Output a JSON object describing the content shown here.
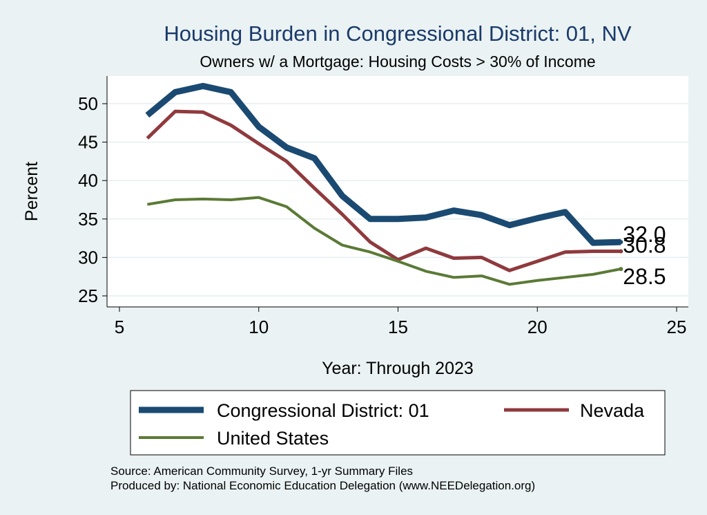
{
  "chart_data": {
    "type": "line",
    "title": "Housing Burden in Congressional District:  01, NV",
    "subtitle": "Owners w/ a Mortgage: Housing Costs > 30% of Income",
    "xlabel": "Year: Through 2023",
    "ylabel": "Percent",
    "xlim": [
      5,
      25
    ],
    "ylim": [
      24,
      54
    ],
    "xticks": [
      5,
      10,
      15,
      20,
      25
    ],
    "yticks": [
      25,
      30,
      35,
      40,
      45,
      50
    ],
    "grid": true,
    "legend_position": "bottom",
    "x": [
      6,
      7,
      8,
      9,
      10,
      11,
      12,
      13,
      14,
      15,
      16,
      17,
      18,
      19,
      20,
      21,
      22,
      23
    ],
    "series": [
      {
        "name": "Congressional District:  01",
        "color": "#1a4a72",
        "values": [
          48.5,
          51.5,
          52.3,
          51.5,
          47.0,
          44.3,
          42.9,
          38.0,
          35.0,
          35.0,
          35.2,
          36.1,
          35.5,
          34.2,
          35.1,
          35.9,
          31.9,
          32.0
        ],
        "end_label": "32.0"
      },
      {
        "name": "Nevada",
        "color": "#8f3a3e",
        "values": [
          45.5,
          49.0,
          48.9,
          47.2,
          44.8,
          42.5,
          39.0,
          35.6,
          32.0,
          29.7,
          31.2,
          29.9,
          30.0,
          28.3,
          29.5,
          30.7,
          30.8,
          30.8
        ],
        "end_label": "30.8"
      },
      {
        "name": "United States",
        "color": "#5a7a35",
        "values": [
          36.9,
          37.5,
          37.6,
          37.5,
          37.8,
          36.6,
          33.8,
          31.6,
          30.7,
          29.5,
          28.2,
          27.4,
          27.6,
          26.5,
          27.0,
          27.4,
          27.8,
          28.5
        ],
        "end_label": "28.5"
      }
    ],
    "source_lines": [
      "Source: American Community Survey, 1-yr Summary Files",
      "Produced by: National Economic Education Delegation (www.NEEDelegation.org)"
    ]
  }
}
